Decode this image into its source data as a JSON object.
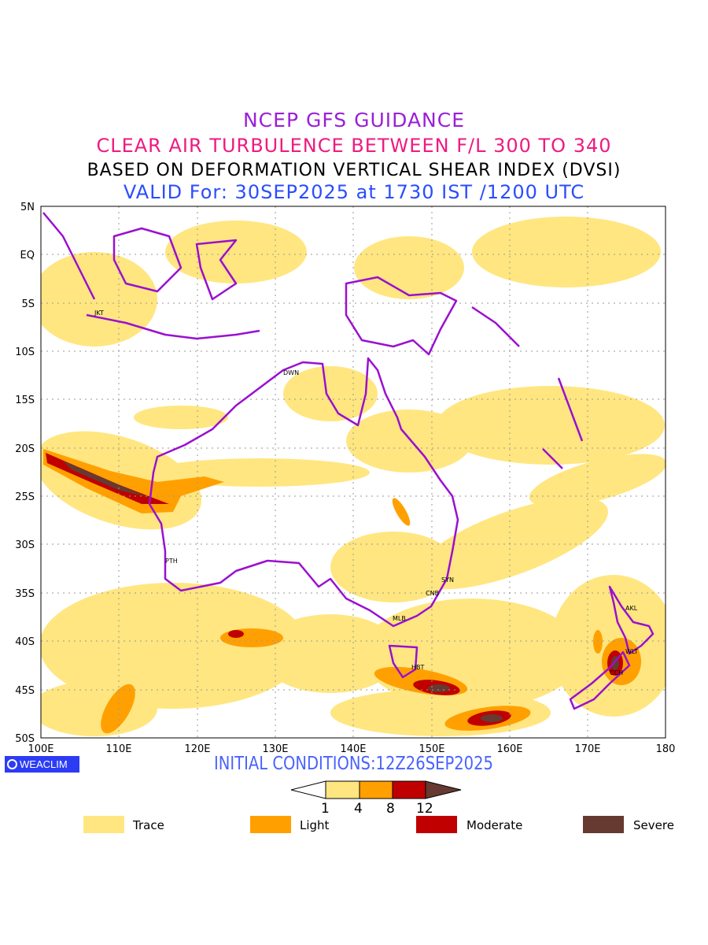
{
  "titles": {
    "line1": "NCEP GFS GUIDANCE",
    "line2": "CLEAR AIR TURBULENCE BETWEEN F/L 300 TO 340",
    "line3": "BASED ON DEFORMATION VERTICAL SHEAR INDEX (DVSI)",
    "line4": "VALID For: 30SEP2025 at 1730 IST /1200 UTC"
  },
  "axes": {
    "lat_labels": [
      "5N",
      "EQ",
      "5S",
      "10S",
      "15S",
      "20S",
      "25S",
      "30S",
      "35S",
      "40S",
      "45S",
      "50S"
    ],
    "lon_labels": [
      "100E",
      "110E",
      "120E",
      "130E",
      "140E",
      "150E",
      "160E",
      "170E",
      "180"
    ]
  },
  "cities": {
    "jkt": "JKT",
    "dwn": "DWN",
    "pth": "PTH",
    "syn": "SYN",
    "cnb": "CNB",
    "mlb": "MLB",
    "hbt": "HBT",
    "akl": "AKL",
    "wlt": "WLT",
    "cch": "CCH"
  },
  "logo": "WEACLIM",
  "initial_conditions": "INITIAL CONDITIONS:12Z26SEP2025",
  "colorbar": {
    "levels": [
      "1",
      "4",
      "8",
      "12"
    ],
    "colors": {
      "trace": "#ffe680",
      "light": "#ffa000",
      "moderate": "#c00000",
      "severe": "#663a30"
    }
  },
  "legend": {
    "trace": "Trace",
    "light": "Light",
    "moderate": "Moderate",
    "severe": "Severe"
  },
  "colors": {
    "coast": "#9a10d0",
    "grid": "#999999"
  }
}
